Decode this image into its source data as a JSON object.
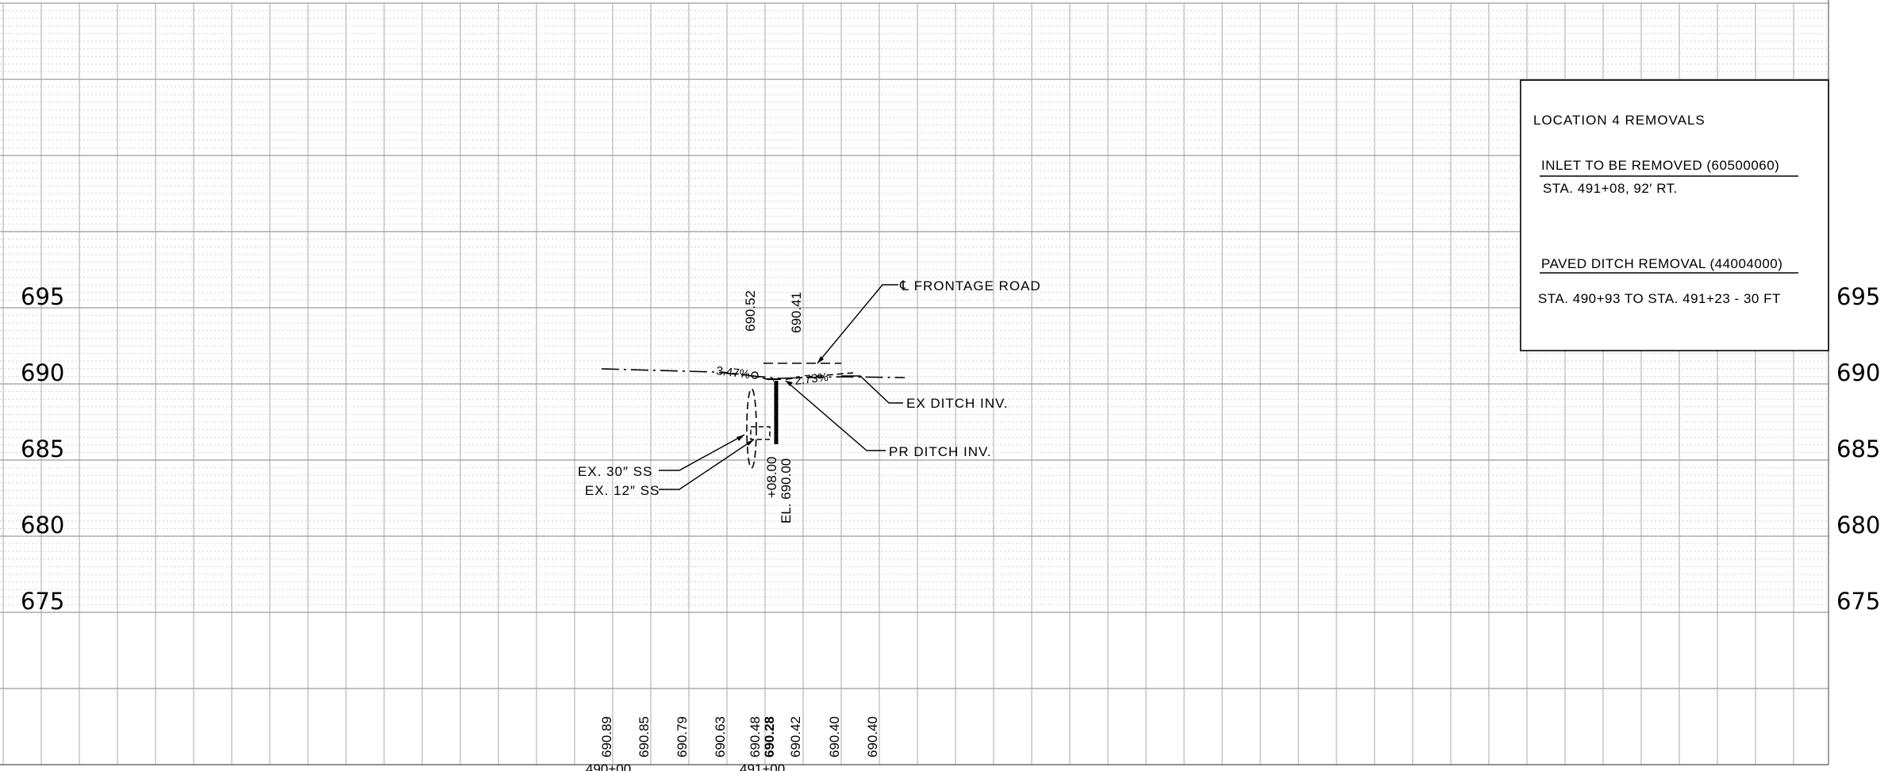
{
  "elevation_labels": [
    "695",
    "690",
    "685",
    "680",
    "675"
  ],
  "callouts": {
    "frontage_road": "℄ FRONTAGE ROAD",
    "ex_ditch_inv": "EX DITCH INV.",
    "pr_ditch_inv": "PR DITCH INV.",
    "ex_30_ss": "EX. 30″ SS",
    "ex_12_ss": "EX. 12″ SS"
  },
  "slopes": {
    "left": "3.47%",
    "right": "2.73%"
  },
  "top_elevations": [
    "690.52",
    "690.41"
  ],
  "inlet_label": {
    "station": "+08.00",
    "elevation": "EL. 690.00"
  },
  "bottom_elevations": [
    "690.89",
    "690.85",
    "690.79",
    "690.63",
    "690.48",
    "690.28",
    "690.42",
    "690.40",
    "690.40"
  ],
  "stations": [
    "490+00",
    "491+00"
  ],
  "removals_box": {
    "title": "LOCATION 4  REMOVALS",
    "item1_heading": "INLET TO BE REMOVED (60500060)",
    "item1_detail": "STA. 491+08, 92′ RT.",
    "item2_heading": "PAVED DITCH REMOVAL (44004000)",
    "item2_detail": "STA. 490+93 TO STA. 491+23 - 30 FT"
  }
}
